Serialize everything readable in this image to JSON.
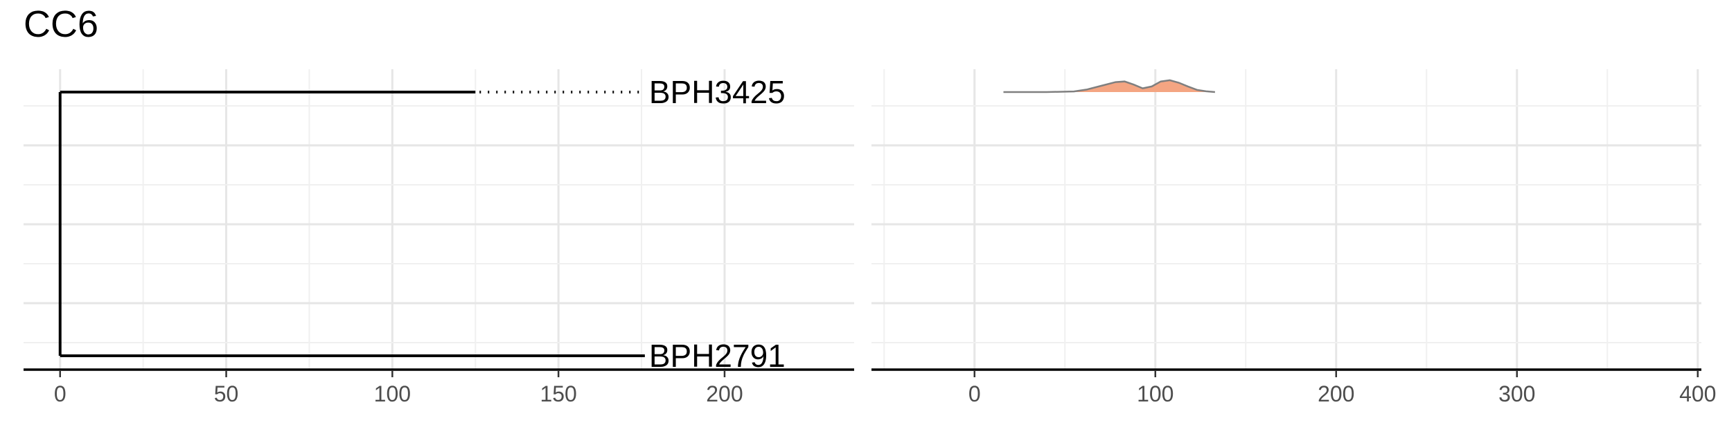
{
  "title": "CC6",
  "chart_data": [
    {
      "type": "tree",
      "panel": "left",
      "xlim": [
        -11,
        239
      ],
      "x_ticks": [
        0,
        50,
        100,
        150,
        200
      ],
      "x_tick_labels": [
        "0",
        "50",
        "100",
        "150",
        "200"
      ],
      "grid": true,
      "tips": [
        {
          "label": "BPH3425",
          "x": 176,
          "solid_to": 125
        },
        {
          "label": "BPH2791",
          "x": 176,
          "solid_to": 176
        }
      ],
      "root_x": 0
    },
    {
      "type": "area",
      "panel": "right",
      "xlim": [
        -57,
        402
      ],
      "x_ticks": [
        0,
        100,
        200,
        300,
        400
      ],
      "x_tick_labels": [
        "0",
        "100",
        "200",
        "300",
        "400"
      ],
      "grid": true,
      "fill_color": "#F4A582",
      "line_color": "#7F7F7F",
      "series": [
        {
          "row": "BPH3425",
          "x": [
            16,
            40,
            55,
            62,
            70,
            78,
            83,
            88,
            93,
            98,
            103,
            108,
            113,
            118,
            123,
            128,
            133
          ],
          "density": [
            0,
            0,
            0.05,
            0.2,
            0.5,
            0.8,
            0.85,
            0.6,
            0.3,
            0.45,
            0.85,
            0.95,
            0.75,
            0.45,
            0.18,
            0.06,
            0
          ]
        }
      ]
    }
  ]
}
